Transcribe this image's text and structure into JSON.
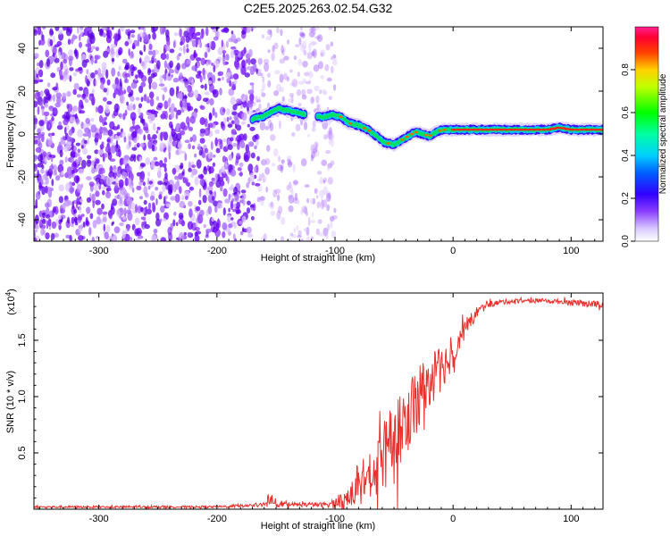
{
  "title": "C2E5.2025.263.02.54.G32",
  "chart_data": [
    {
      "type": "heatmap",
      "name": "spectrogram",
      "xlabel": "Height of straight line (km)",
      "ylabel": "Frequency (Hz)",
      "xlim": [
        -355,
        127
      ],
      "ylim": [
        -50,
        50
      ],
      "xticks": [
        -300,
        -200,
        -100,
        0,
        100
      ],
      "yticks": [
        -40,
        -20,
        0,
        20,
        40
      ],
      "noise_region_x": [
        -355,
        -100
      ],
      "noise_gap_x": [
        -165,
        -100
      ],
      "colorbar": {
        "label": "Normalized spectral amplitude",
        "range": [
          0.0,
          1.0
        ],
        "ticks": [
          0.0,
          0.2,
          0.4,
          0.6,
          0.8
        ]
      },
      "signal_track": {
        "x": [
          -170,
          -162,
          -155,
          -148,
          -140,
          -132,
          -125,
          -118,
          -110,
          -102,
          -95,
          -88,
          -80,
          -72,
          -65,
          -58,
          -50,
          -44,
          -38,
          -32,
          -26,
          -20,
          -14,
          -8,
          -2,
          5,
          20,
          40,
          60,
          80,
          90,
          100,
          110,
          127
        ],
        "freq": [
          7,
          8,
          10,
          12,
          11,
          10,
          9,
          8,
          8,
          9,
          8,
          5,
          4,
          2,
          -1,
          -4,
          -5,
          -3,
          -1,
          1,
          0,
          -1,
          1,
          2,
          2,
          2,
          2,
          2,
          2,
          2,
          3,
          2,
          2,
          2
        ]
      }
    },
    {
      "type": "line",
      "name": "snr",
      "xlabel": "Height of straight line (km)",
      "ylabel": "SNR (10 * v/v)",
      "y_multiplier": "(x10",
      "y_multiplier_exp": "4",
      "y_multiplier_close": ")",
      "xlim": [
        -355,
        127
      ],
      "ylim": [
        0,
        1.92
      ],
      "xticks": [
        -300,
        -200,
        -100,
        0,
        100
      ],
      "yticks": [
        0.5,
        1.0,
        1.5
      ],
      "ytick_labels": [
        "0.5",
        "1.0",
        "1.5"
      ],
      "color": "#e8302c",
      "series_envelope": {
        "x": [
          -355,
          -200,
          -160,
          -110,
          -100,
          -90,
          -80,
          -70,
          -60,
          -50,
          -40,
          -30,
          -20,
          -10,
          0,
          10,
          20,
          30,
          50,
          80,
          110,
          127
        ],
        "y_mean": [
          0.02,
          0.02,
          0.04,
          0.04,
          0.05,
          0.1,
          0.18,
          0.3,
          0.45,
          0.6,
          0.8,
          1.0,
          1.15,
          1.25,
          1.4,
          1.6,
          1.75,
          1.82,
          1.85,
          1.85,
          1.83,
          1.82
        ],
        "y_spread": [
          0.01,
          0.01,
          0.02,
          0.02,
          0.05,
          0.1,
          0.15,
          0.2,
          0.3,
          0.35,
          0.35,
          0.3,
          0.25,
          0.2,
          0.15,
          0.08,
          0.05,
          0.03,
          0.02,
          0.02,
          0.03,
          0.03
        ]
      }
    }
  ]
}
